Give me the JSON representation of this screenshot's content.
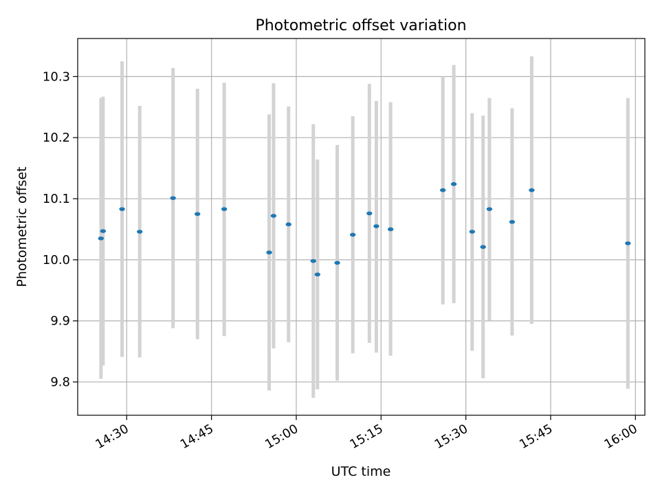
{
  "chart_data": {
    "type": "scatter",
    "title": "Photometric offset variation",
    "xlabel": "UTC time",
    "ylabel": "Photometric offset",
    "x_ticks": [
      "14:30",
      "14:45",
      "15:00",
      "15:15",
      "15:30",
      "15:45",
      "16:00"
    ],
    "y_ticks": [
      "9.8",
      "9.9",
      "10.0",
      "10.1",
      "10.2",
      "10.3"
    ],
    "grid": true,
    "marker_color": "#1f77b4",
    "errorbar_color": "#d3d3d3",
    "points": [
      {
        "t": "14:25:27",
        "y": 10.035,
        "low": 9.805,
        "high": 10.265
      },
      {
        "t": "14:25:49",
        "y": 10.047,
        "low": 9.827,
        "high": 10.267
      },
      {
        "t": "14:29:11",
        "y": 10.083,
        "low": 9.841,
        "high": 10.325
      },
      {
        "t": "14:32:18",
        "y": 10.046,
        "low": 9.84,
        "high": 10.252
      },
      {
        "t": "14:38:12",
        "y": 10.101,
        "low": 9.888,
        "high": 10.314
      },
      {
        "t": "14:42:31",
        "y": 10.075,
        "low": 9.87,
        "high": 10.28
      },
      {
        "t": "14:47:15",
        "y": 10.083,
        "low": 9.875,
        "high": 10.29
      },
      {
        "t": "14:55:12",
        "y": 10.012,
        "low": 9.786,
        "high": 10.238
      },
      {
        "t": "14:55:59",
        "y": 10.072,
        "low": 9.855,
        "high": 10.289
      },
      {
        "t": "14:58:38",
        "y": 10.058,
        "low": 9.865,
        "high": 10.251
      },
      {
        "t": "15:03:01",
        "y": 9.998,
        "low": 9.774,
        "high": 10.222
      },
      {
        "t": "15:03:45",
        "y": 9.976,
        "low": 9.788,
        "high": 10.164
      },
      {
        "t": "15:07:15",
        "y": 9.995,
        "low": 9.802,
        "high": 10.188
      },
      {
        "t": "15:10:00",
        "y": 10.041,
        "low": 9.847,
        "high": 10.235
      },
      {
        "t": "15:12:56",
        "y": 10.076,
        "low": 9.864,
        "high": 10.288
      },
      {
        "t": "15:14:10",
        "y": 10.055,
        "low": 9.848,
        "high": 10.26
      },
      {
        "t": "15:16:41",
        "y": 10.05,
        "low": 9.843,
        "high": 10.258
      },
      {
        "t": "15:25:56",
        "y": 10.114,
        "low": 9.927,
        "high": 10.3
      },
      {
        "t": "15:27:52",
        "y": 10.124,
        "low": 9.929,
        "high": 10.319
      },
      {
        "t": "15:31:07",
        "y": 10.046,
        "low": 9.851,
        "high": 10.24
      },
      {
        "t": "15:33:03",
        "y": 10.021,
        "low": 9.806,
        "high": 10.236
      },
      {
        "t": "15:34:10",
        "y": 10.083,
        "low": 9.901,
        "high": 10.265
      },
      {
        "t": "15:38:11",
        "y": 10.062,
        "low": 9.876,
        "high": 10.248
      },
      {
        "t": "15:41:39",
        "y": 10.114,
        "low": 9.895,
        "high": 10.333
      },
      {
        "t": "15:58:40",
        "y": 10.027,
        "low": 9.789,
        "high": 10.265
      }
    ]
  }
}
